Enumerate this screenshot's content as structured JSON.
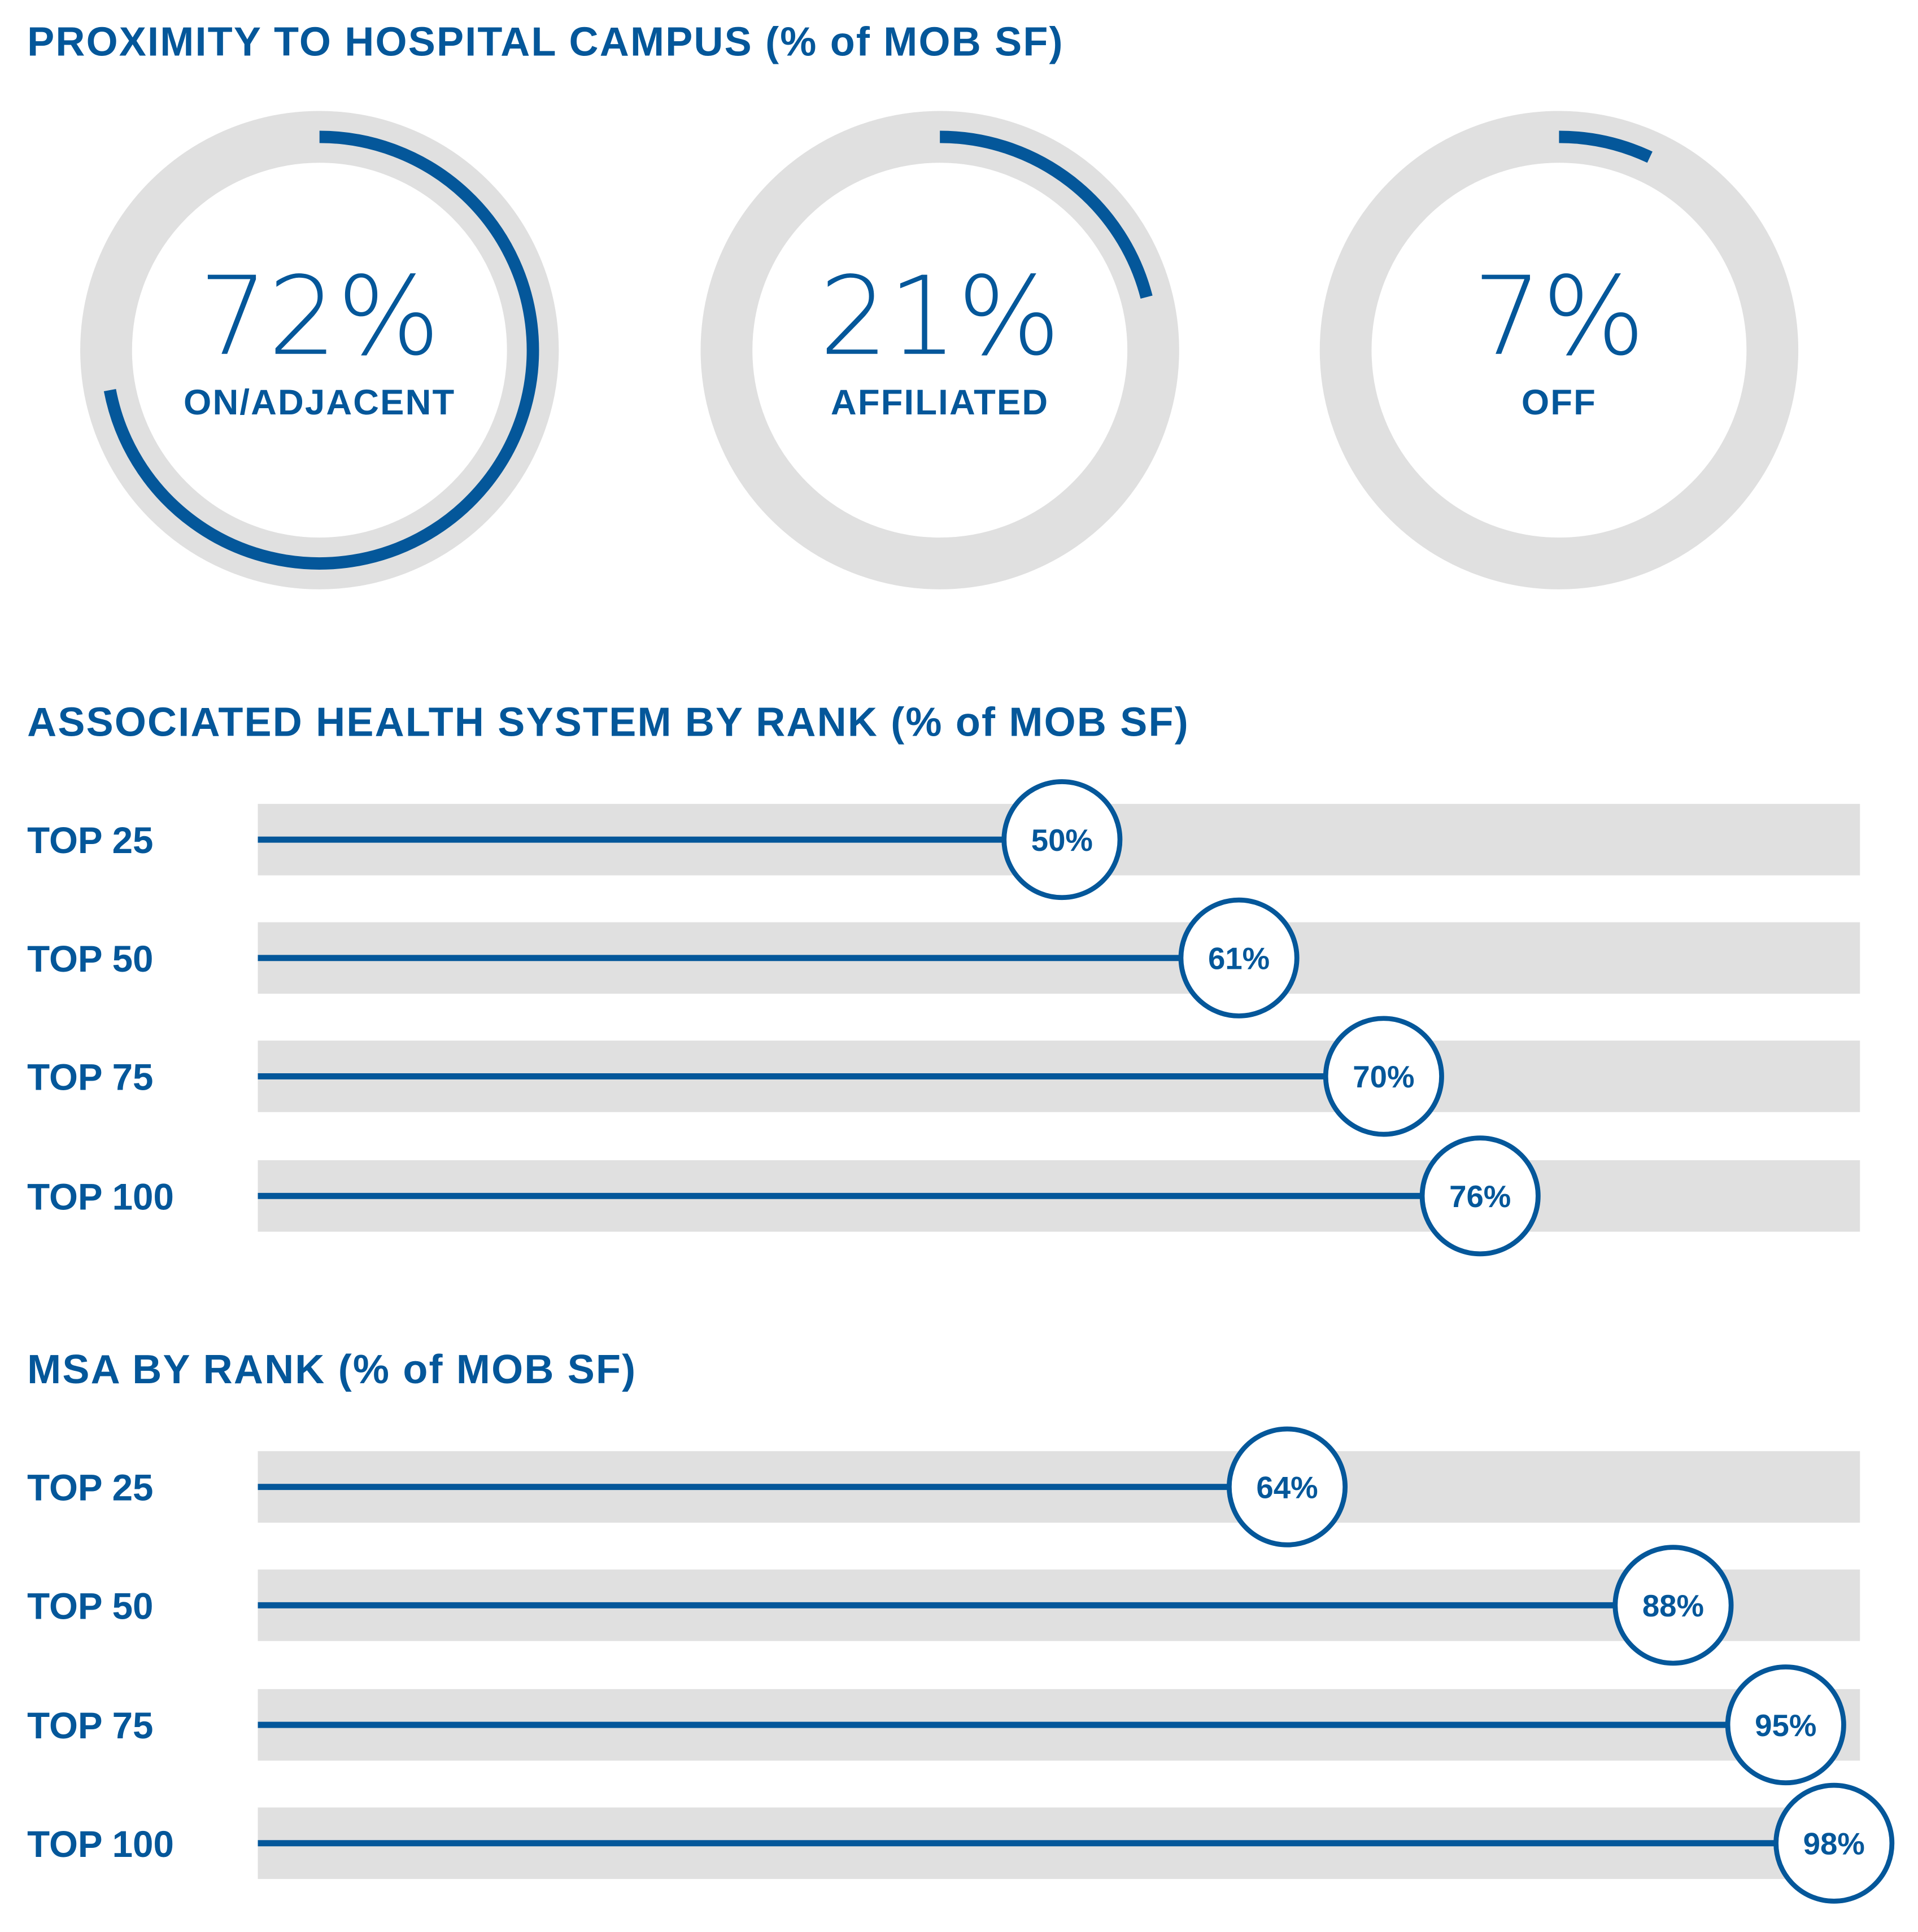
{
  "colors": {
    "accent": "#04579a",
    "track": "#e0e0e0"
  },
  "chart_data": [
    {
      "type": "donut",
      "title": "PROXIMITY TO HOSPITAL CAMPUS (% of MOB SF)",
      "items": [
        {
          "label": "ON/ADJACENT",
          "value": 72,
          "display": "72%"
        },
        {
          "label": "AFFILIATED",
          "value": 21,
          "display": "21%"
        },
        {
          "label": "OFF",
          "value": 7,
          "display": "7%"
        }
      ]
    },
    {
      "type": "bar",
      "title": "ASSOCIATED HEALTH SYSTEM BY RANK (% of MOB SF)",
      "categories": [
        "TOP 25",
        "TOP 50",
        "TOP 75",
        "TOP 100"
      ],
      "values": [
        50,
        61,
        70,
        76
      ],
      "labels": [
        "50%",
        "61%",
        "70%",
        "76%"
      ],
      "xlim": [
        0,
        100
      ]
    },
    {
      "type": "bar",
      "title": "MSA BY RANK (% of MOB SF)",
      "categories": [
        "TOP 25",
        "TOP 50",
        "TOP 75",
        "TOP 100"
      ],
      "values": [
        64,
        88,
        95,
        98
      ],
      "labels": [
        "64%",
        "88%",
        "95%",
        "98%"
      ],
      "xlim": [
        0,
        100
      ]
    }
  ]
}
